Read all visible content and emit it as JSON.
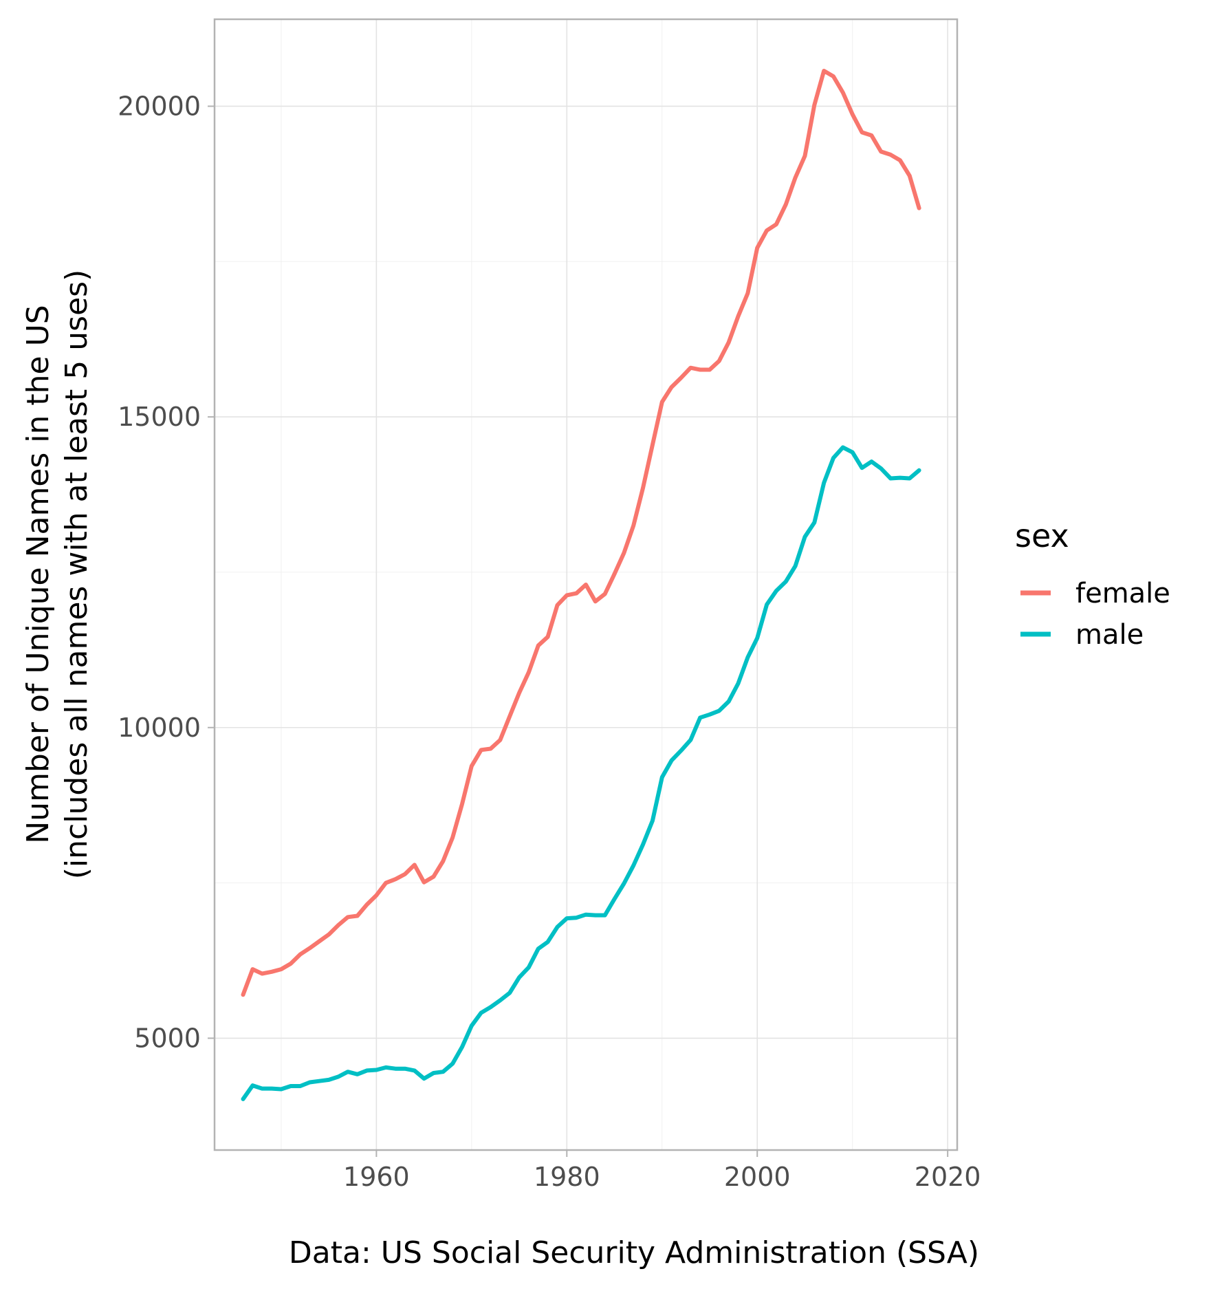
{
  "chart_data": {
    "type": "line",
    "title": "",
    "xlabel": "Data: US  Social Security Administration (SSA)",
    "ylabel": [
      "Number of Unique Names in the US",
      "(includes all names with at least 5 uses)"
    ],
    "xlim": [
      1943,
      2021
    ],
    "ylim": [
      3200,
      21400
    ],
    "x_ticks": [
      1960,
      1980,
      2000,
      2020
    ],
    "y_ticks": [
      5000,
      10000,
      15000,
      20000
    ],
    "grid": true,
    "legend": {
      "title": "sex",
      "placement": "right"
    },
    "x": [
      1946,
      1947,
      1948,
      1949,
      1950,
      1951,
      1952,
      1953,
      1954,
      1955,
      1956,
      1957,
      1958,
      1959,
      1960,
      1961,
      1962,
      1963,
      1964,
      1965,
      1966,
      1967,
      1968,
      1969,
      1970,
      1971,
      1972,
      1973,
      1974,
      1975,
      1976,
      1977,
      1978,
      1979,
      1980,
      1981,
      1982,
      1983,
      1984,
      1985,
      1986,
      1987,
      1988,
      1989,
      1990,
      1991,
      1992,
      1993,
      1994,
      1995,
      1996,
      1997,
      1998,
      1999,
      2000,
      2001,
      2002,
      2003,
      2004,
      2005,
      2006,
      2007,
      2008,
      2009,
      2010,
      2011,
      2012,
      2013,
      2014,
      2015,
      2016,
      2017
    ],
    "series": [
      {
        "name": "female",
        "color": "#F8766D",
        "values": [
          5700,
          6110,
          6040,
          6070,
          6110,
          6200,
          6350,
          6450,
          6560,
          6670,
          6820,
          6950,
          6970,
          7150,
          7300,
          7500,
          7560,
          7640,
          7790,
          7510,
          7600,
          7850,
          8230,
          8770,
          9380,
          9640,
          9660,
          9800,
          10180,
          10560,
          10890,
          11320,
          11460,
          11970,
          12130,
          12160,
          12300,
          12030,
          12150,
          12470,
          12810,
          13250,
          13860,
          14550,
          15240,
          15480,
          15630,
          15790,
          15760,
          15760,
          15900,
          16200,
          16620,
          16990,
          17720,
          18000,
          18100,
          18420,
          18850,
          19200,
          20020,
          20570,
          20480,
          20220,
          19870,
          19580,
          19530,
          19270,
          19220,
          19130,
          18880,
          18360
        ]
      },
      {
        "name": "male",
        "color": "#00BFC4",
        "values": [
          4020,
          4240,
          4190,
          4190,
          4180,
          4230,
          4230,
          4290,
          4310,
          4330,
          4380,
          4460,
          4420,
          4480,
          4490,
          4530,
          4510,
          4510,
          4480,
          4350,
          4440,
          4460,
          4590,
          4860,
          5200,
          5410,
          5500,
          5610,
          5730,
          5980,
          6140,
          6440,
          6550,
          6790,
          6930,
          6940,
          6990,
          6980,
          6980,
          7240,
          7490,
          7780,
          8120,
          8500,
          9200,
          9470,
          9630,
          9800,
          10160,
          10210,
          10270,
          10420,
          10710,
          11130,
          11440,
          11980,
          12200,
          12350,
          12600,
          13070,
          13300,
          13940,
          14340,
          14510,
          14430,
          14180,
          14280,
          14170,
          14010,
          14020,
          14010,
          14140
        ]
      }
    ]
  }
}
